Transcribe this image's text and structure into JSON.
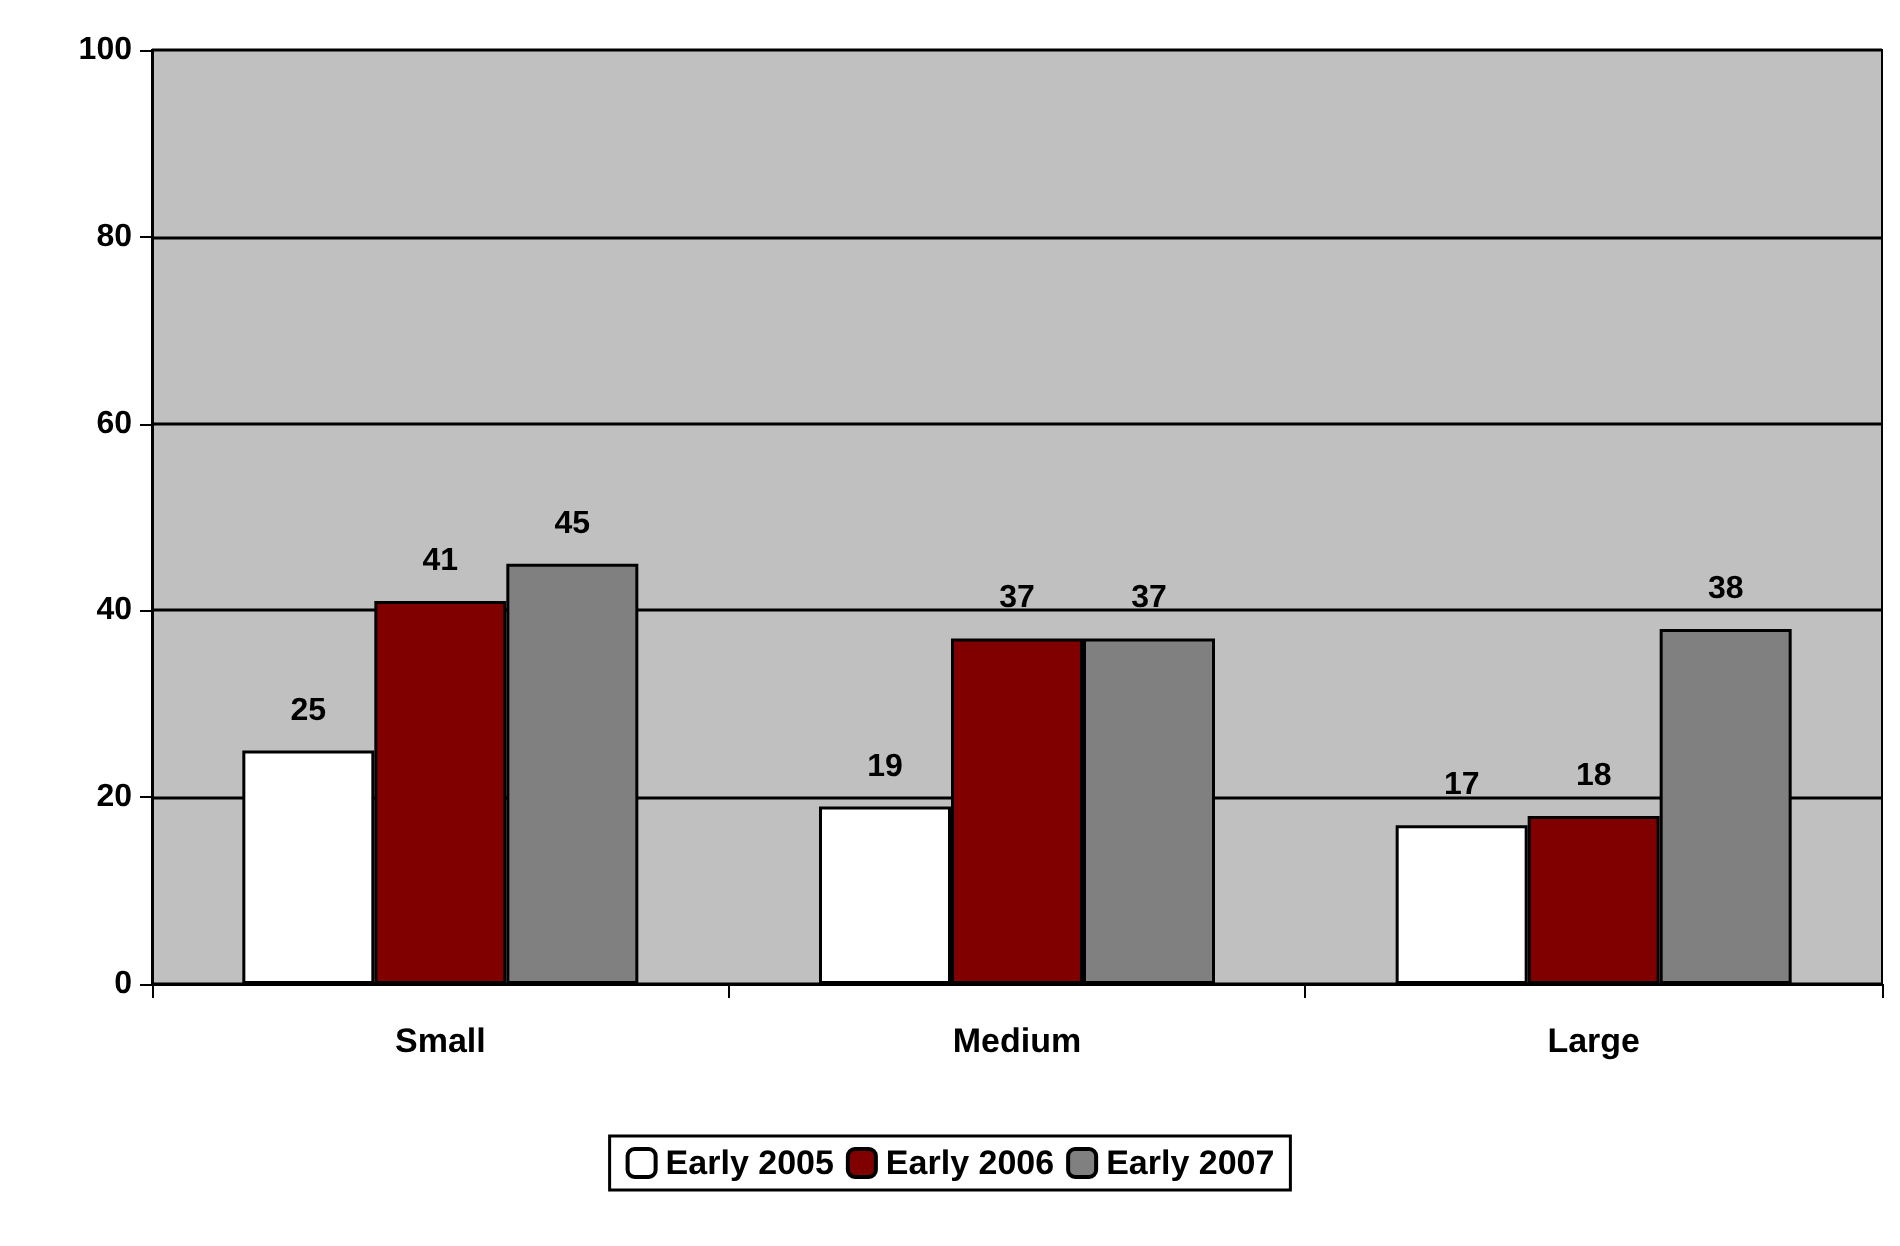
{
  "chart_data": {
    "type": "bar",
    "categories": [
      "Small",
      "Medium",
      "Large"
    ],
    "series": [
      {
        "name": "Early 2005",
        "color": "#ffffff",
        "values": [
          25,
          19,
          17
        ]
      },
      {
        "name": "Early 2006",
        "color": "#800000",
        "values": [
          41,
          37,
          18
        ]
      },
      {
        "name": "Early 2007",
        "color": "#808080",
        "values": [
          45,
          37,
          38
        ]
      }
    ],
    "ylim": [
      0,
      100
    ],
    "yticks": [
      0,
      20,
      40,
      60,
      80,
      100
    ],
    "grid": "y",
    "legend": "bottom",
    "data_labels": true
  }
}
